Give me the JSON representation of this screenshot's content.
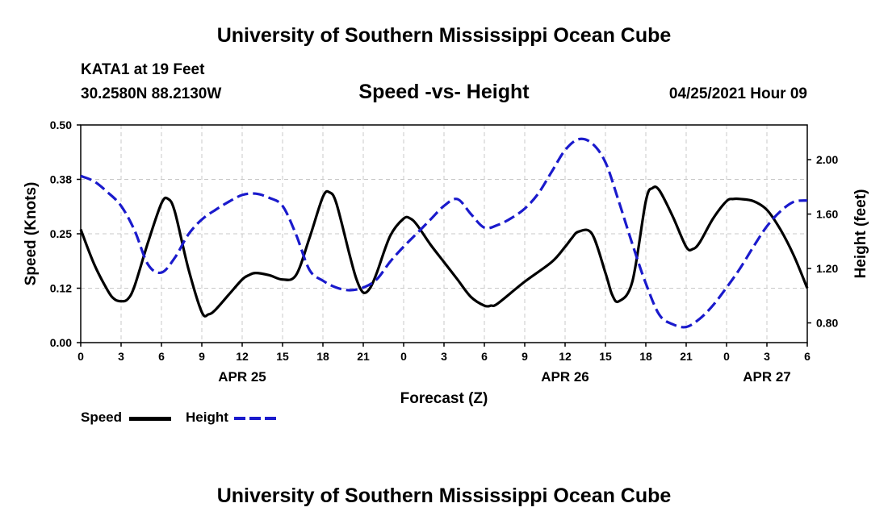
{
  "header": {
    "title_top": "University of Southern Mississippi Ocean Cube",
    "station": "KATA1 at 19 Feet",
    "coords": "30.2580N  88.2130W",
    "plot_title": "Speed -vs- Height",
    "datetime": "04/25/2021 Hour 09",
    "title_bottom": "University of Southern Mississippi Ocean Cube"
  },
  "legend": {
    "speed_label": "Speed",
    "height_label": "Height"
  },
  "chart_data": {
    "type": "line",
    "title": "Speed -vs- Height",
    "xlabel": "Forecast (Z)",
    "ylabel_left": "Speed (Knots)",
    "ylabel_right": "Height (feet)",
    "x_range_hours": [
      0,
      54
    ],
    "x_ticks": [
      {
        "h": 0,
        "label": "0"
      },
      {
        "h": 3,
        "label": "3"
      },
      {
        "h": 6,
        "label": "6"
      },
      {
        "h": 9,
        "label": "9"
      },
      {
        "h": 12,
        "label": "12"
      },
      {
        "h": 15,
        "label": "15"
      },
      {
        "h": 18,
        "label": "18"
      },
      {
        "h": 21,
        "label": "21"
      },
      {
        "h": 24,
        "label": "0"
      },
      {
        "h": 27,
        "label": "3"
      },
      {
        "h": 30,
        "label": "6"
      },
      {
        "h": 33,
        "label": "9"
      },
      {
        "h": 36,
        "label": "12"
      },
      {
        "h": 39,
        "label": "15"
      },
      {
        "h": 42,
        "label": "18"
      },
      {
        "h": 45,
        "label": "21"
      },
      {
        "h": 48,
        "label": "0"
      },
      {
        "h": 51,
        "label": "3"
      },
      {
        "h": 54,
        "label": "6"
      }
    ],
    "date_labels": [
      {
        "h": 12,
        "label": "APR 25"
      },
      {
        "h": 36,
        "label": "APR 26"
      },
      {
        "h": 51,
        "label": "APR 27"
      }
    ],
    "y_left": {
      "range": [
        0.0,
        0.5
      ],
      "ticks": [
        {
          "v": 0.0,
          "label": "0.00"
        },
        {
          "v": 0.125,
          "label": "0.12"
        },
        {
          "v": 0.25,
          "label": "0.25"
        },
        {
          "v": 0.375,
          "label": "0.38"
        },
        {
          "v": 0.5,
          "label": "0.50"
        }
      ]
    },
    "y_right": {
      "range": [
        0.655,
        2.255
      ],
      "ticks": [
        {
          "v": 0.8,
          "label": "0.80"
        },
        {
          "v": 1.2,
          "label": "1.20"
        },
        {
          "v": 1.6,
          "label": "1.60"
        },
        {
          "v": 2.0,
          "label": "2.00"
        }
      ]
    },
    "series": [
      {
        "name": "Speed",
        "color": "#000000",
        "dash": "solid",
        "axis": "left",
        "x": [
          0,
          1,
          2,
          2.5,
          3,
          3.5,
          4,
          5,
          6,
          6.5,
          7,
          8,
          9,
          9.5,
          10,
          11,
          12,
          12.5,
          13,
          14,
          15,
          16,
          17,
          18,
          18.5,
          19,
          20,
          20.5,
          21,
          21.5,
          22,
          23,
          24,
          24.5,
          25,
          26,
          27,
          28,
          29,
          30,
          30.5,
          31,
          33,
          35,
          36,
          36.5,
          37,
          38,
          39,
          39.5,
          40,
          41,
          42,
          42.5,
          43,
          44,
          45,
          45.5,
          46,
          47,
          48,
          48.5,
          49,
          50,
          51,
          52,
          53,
          54
        ],
        "values": [
          0.26,
          0.18,
          0.12,
          0.1,
          0.095,
          0.1,
          0.13,
          0.23,
          0.32,
          0.33,
          0.3,
          0.17,
          0.07,
          0.065,
          0.075,
          0.11,
          0.145,
          0.155,
          0.16,
          0.155,
          0.145,
          0.155,
          0.24,
          0.335,
          0.345,
          0.32,
          0.2,
          0.145,
          0.115,
          0.125,
          0.16,
          0.245,
          0.285,
          0.285,
          0.27,
          0.225,
          0.185,
          0.145,
          0.105,
          0.085,
          0.085,
          0.09,
          0.14,
          0.185,
          0.22,
          0.24,
          0.255,
          0.25,
          0.16,
          0.11,
          0.095,
          0.14,
          0.325,
          0.355,
          0.35,
          0.29,
          0.22,
          0.215,
          0.23,
          0.285,
          0.325,
          0.33,
          0.33,
          0.325,
          0.305,
          0.26,
          0.2,
          0.125
        ]
      },
      {
        "name": "Height",
        "color": "#1a1acc",
        "dash": "dashed",
        "axis": "right",
        "x": [
          0,
          1,
          2,
          3,
          4,
          5,
          6,
          7,
          8,
          9,
          10,
          11,
          12,
          13,
          14,
          15,
          16,
          17,
          18,
          19,
          20,
          21,
          22,
          23,
          24,
          25,
          26,
          27,
          28,
          29,
          30,
          31,
          32,
          33,
          34,
          35,
          36,
          37,
          38,
          39,
          40,
          41,
          42,
          43,
          44,
          45,
          46,
          47,
          48,
          49,
          50,
          51,
          52,
          53,
          54
        ],
        "values": [
          1.88,
          1.84,
          1.76,
          1.66,
          1.48,
          1.23,
          1.17,
          1.28,
          1.45,
          1.56,
          1.63,
          1.69,
          1.74,
          1.75,
          1.72,
          1.66,
          1.45,
          1.19,
          1.11,
          1.06,
          1.04,
          1.06,
          1.12,
          1.25,
          1.36,
          1.46,
          1.56,
          1.66,
          1.71,
          1.6,
          1.5,
          1.52,
          1.57,
          1.64,
          1.75,
          1.91,
          2.07,
          2.15,
          2.12,
          1.98,
          1.69,
          1.38,
          1.09,
          0.86,
          0.79,
          0.77,
          0.83,
          0.93,
          1.06,
          1.2,
          1.36,
          1.51,
          1.62,
          1.69,
          1.7
        ]
      }
    ],
    "grid": true
  }
}
